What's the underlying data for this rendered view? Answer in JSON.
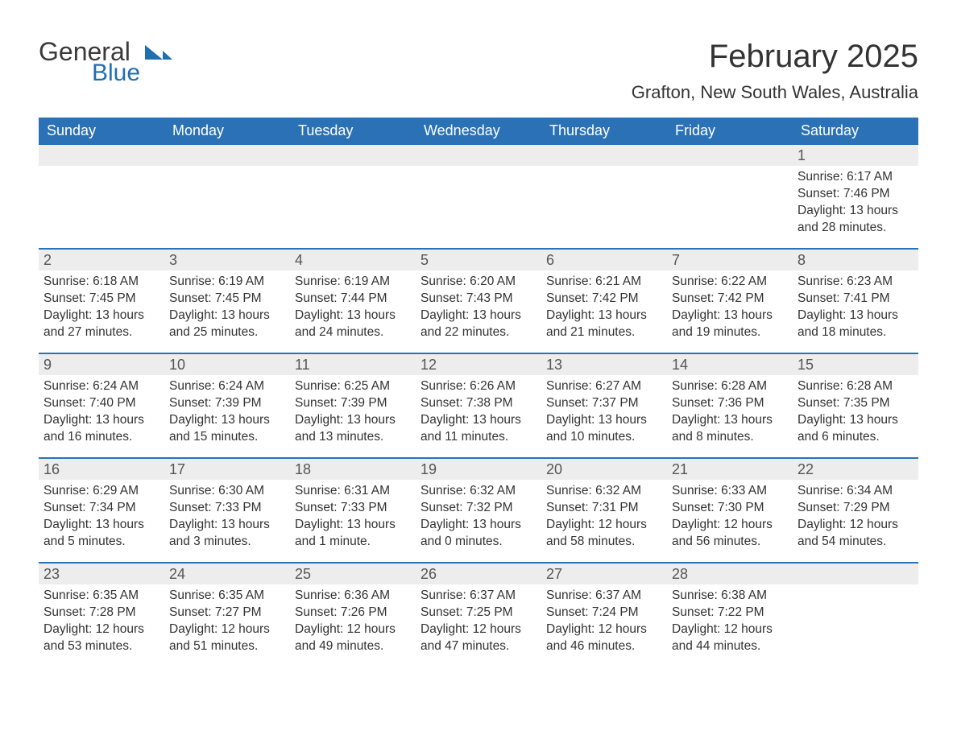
{
  "logo": {
    "text_general": "General",
    "text_blue": "Blue",
    "flag_color": "#1f6fb2",
    "general_color": "#3a3a3a"
  },
  "header": {
    "month_title": "February 2025",
    "location": "Grafton, New South Wales, Australia",
    "title_fontsize": 40,
    "location_fontsize": 22
  },
  "calendar": {
    "type": "table",
    "header_bg": "#2a72b5",
    "header_text_color": "#ffffff",
    "daynum_bg": "#ededed",
    "week_divider_color": "#2a72b5",
    "body_text_color": "#333333",
    "weekday_fontsize": 18,
    "daynum_fontsize": 18,
    "body_fontsize": 15.5,
    "weekdays": [
      "Sunday",
      "Monday",
      "Tuesday",
      "Wednesday",
      "Thursday",
      "Friday",
      "Saturday"
    ],
    "labels": {
      "sunrise": "Sunrise:",
      "sunset": "Sunset:",
      "daylight": "Daylight:"
    },
    "leading_blanks": 6,
    "trailing_blanks": 1,
    "days": [
      {
        "n": 1,
        "sunrise": "6:17 AM",
        "sunset": "7:46 PM",
        "daylight": "13 hours and 28 minutes."
      },
      {
        "n": 2,
        "sunrise": "6:18 AM",
        "sunset": "7:45 PM",
        "daylight": "13 hours and 27 minutes."
      },
      {
        "n": 3,
        "sunrise": "6:19 AM",
        "sunset": "7:45 PM",
        "daylight": "13 hours and 25 minutes."
      },
      {
        "n": 4,
        "sunrise": "6:19 AM",
        "sunset": "7:44 PM",
        "daylight": "13 hours and 24 minutes."
      },
      {
        "n": 5,
        "sunrise": "6:20 AM",
        "sunset": "7:43 PM",
        "daylight": "13 hours and 22 minutes."
      },
      {
        "n": 6,
        "sunrise": "6:21 AM",
        "sunset": "7:42 PM",
        "daylight": "13 hours and 21 minutes."
      },
      {
        "n": 7,
        "sunrise": "6:22 AM",
        "sunset": "7:42 PM",
        "daylight": "13 hours and 19 minutes."
      },
      {
        "n": 8,
        "sunrise": "6:23 AM",
        "sunset": "7:41 PM",
        "daylight": "13 hours and 18 minutes."
      },
      {
        "n": 9,
        "sunrise": "6:24 AM",
        "sunset": "7:40 PM",
        "daylight": "13 hours and 16 minutes."
      },
      {
        "n": 10,
        "sunrise": "6:24 AM",
        "sunset": "7:39 PM",
        "daylight": "13 hours and 15 minutes."
      },
      {
        "n": 11,
        "sunrise": "6:25 AM",
        "sunset": "7:39 PM",
        "daylight": "13 hours and 13 minutes."
      },
      {
        "n": 12,
        "sunrise": "6:26 AM",
        "sunset": "7:38 PM",
        "daylight": "13 hours and 11 minutes."
      },
      {
        "n": 13,
        "sunrise": "6:27 AM",
        "sunset": "7:37 PM",
        "daylight": "13 hours and 10 minutes."
      },
      {
        "n": 14,
        "sunrise": "6:28 AM",
        "sunset": "7:36 PM",
        "daylight": "13 hours and 8 minutes."
      },
      {
        "n": 15,
        "sunrise": "6:28 AM",
        "sunset": "7:35 PM",
        "daylight": "13 hours and 6 minutes."
      },
      {
        "n": 16,
        "sunrise": "6:29 AM",
        "sunset": "7:34 PM",
        "daylight": "13 hours and 5 minutes."
      },
      {
        "n": 17,
        "sunrise": "6:30 AM",
        "sunset": "7:33 PM",
        "daylight": "13 hours and 3 minutes."
      },
      {
        "n": 18,
        "sunrise": "6:31 AM",
        "sunset": "7:33 PM",
        "daylight": "13 hours and 1 minute."
      },
      {
        "n": 19,
        "sunrise": "6:32 AM",
        "sunset": "7:32 PM",
        "daylight": "13 hours and 0 minutes."
      },
      {
        "n": 20,
        "sunrise": "6:32 AM",
        "sunset": "7:31 PM",
        "daylight": "12 hours and 58 minutes."
      },
      {
        "n": 21,
        "sunrise": "6:33 AM",
        "sunset": "7:30 PM",
        "daylight": "12 hours and 56 minutes."
      },
      {
        "n": 22,
        "sunrise": "6:34 AM",
        "sunset": "7:29 PM",
        "daylight": "12 hours and 54 minutes."
      },
      {
        "n": 23,
        "sunrise": "6:35 AM",
        "sunset": "7:28 PM",
        "daylight": "12 hours and 53 minutes."
      },
      {
        "n": 24,
        "sunrise": "6:35 AM",
        "sunset": "7:27 PM",
        "daylight": "12 hours and 51 minutes."
      },
      {
        "n": 25,
        "sunrise": "6:36 AM",
        "sunset": "7:26 PM",
        "daylight": "12 hours and 49 minutes."
      },
      {
        "n": 26,
        "sunrise": "6:37 AM",
        "sunset": "7:25 PM",
        "daylight": "12 hours and 47 minutes."
      },
      {
        "n": 27,
        "sunrise": "6:37 AM",
        "sunset": "7:24 PM",
        "daylight": "12 hours and 46 minutes."
      },
      {
        "n": 28,
        "sunrise": "6:38 AM",
        "sunset": "7:22 PM",
        "daylight": "12 hours and 44 minutes."
      }
    ]
  }
}
